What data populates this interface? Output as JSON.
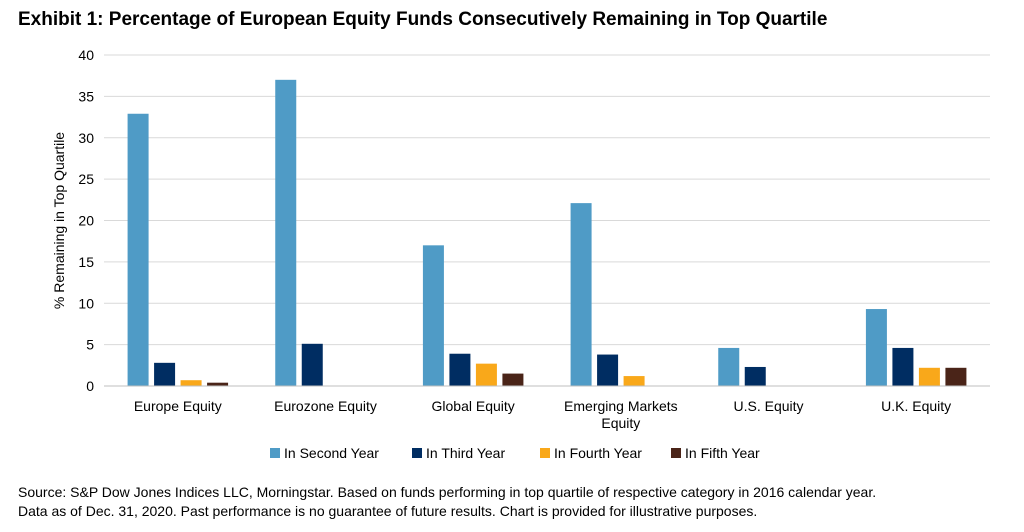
{
  "title": "Exhibit 1: Percentage of European Equity Funds Consecutively Remaining in Top Quartile",
  "source": {
    "line1": "Source: S&P Dow Jones Indices LLC, Morningstar.  Based on funds performing in top quartile of respective category in 2016 calendar year.",
    "line2": "Data as of Dec. 31, 2020.  Past performance is no guarantee of future results.  Chart is provided for illustrative purposes."
  },
  "chart_data": {
    "type": "bar",
    "title": "Exhibit 1: Percentage of European Equity Funds Consecutively Remaining in Top Quartile",
    "xlabel": "",
    "ylabel": "% Remaining in Top Quartile",
    "ylim": [
      0,
      40
    ],
    "yticks": [
      0,
      5,
      10,
      15,
      20,
      25,
      30,
      35,
      40
    ],
    "grid": true,
    "legend_position": "bottom",
    "categories": [
      [
        "Europe Equity"
      ],
      [
        "Eurozone Equity"
      ],
      [
        "Global Equity"
      ],
      [
        "Emerging Markets",
        "Equity"
      ],
      [
        "U.S. Equity"
      ],
      [
        "U.K. Equity"
      ]
    ],
    "series": [
      {
        "name": "In Second Year",
        "color": "#4f9bc6",
        "values": [
          32.9,
          37.0,
          17.0,
          22.1,
          4.6,
          9.3
        ]
      },
      {
        "name": "In Third Year",
        "color": "#002d62",
        "values": [
          2.8,
          5.1,
          3.9,
          3.8,
          2.3,
          4.6
        ]
      },
      {
        "name": "In Fourth Year",
        "color": "#f9a81a",
        "values": [
          0.7,
          0,
          2.7,
          1.2,
          0,
          2.2
        ]
      },
      {
        "name": "In Fifth Year",
        "color": "#4a2418",
        "values": [
          0.4,
          0,
          1.5,
          0,
          0,
          2.2
        ]
      }
    ]
  }
}
